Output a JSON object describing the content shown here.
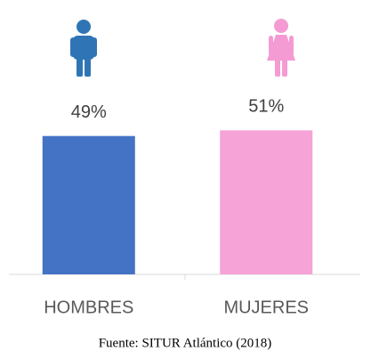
{
  "chart_data": {
    "type": "bar",
    "categories": [
      "HOMBRES",
      "MUJERES"
    ],
    "values": [
      49,
      51
    ],
    "value_labels": [
      "49%",
      "51%"
    ],
    "colors": [
      "#4472c4",
      "#f6a3d8"
    ],
    "source": "Fuente: SITUR Atlántico (2018)"
  }
}
